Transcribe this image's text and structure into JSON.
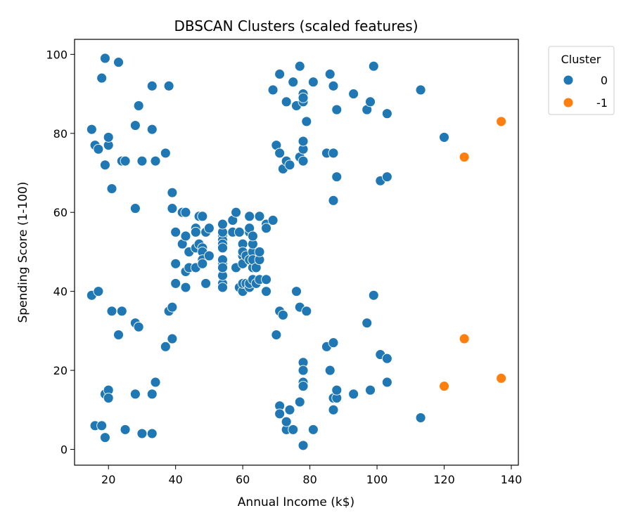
{
  "chart_data": {
    "type": "scatter",
    "title": "DBSCAN Clusters (scaled features)",
    "xlabel": "Annual Income (k$)",
    "ylabel": "Spending Score (1-100)",
    "xlim": [
      9.9,
      142.1
    ],
    "ylim": [
      -4,
      103.8
    ],
    "xticks": [
      20,
      40,
      60,
      80,
      100,
      120,
      140
    ],
    "yticks": [
      0,
      20,
      40,
      60,
      80,
      100
    ],
    "grid": false,
    "legend": {
      "title": "Cluster",
      "placement": "outside-top-right"
    },
    "series": [
      {
        "name": "0",
        "color": "#1f77b4",
        "points": [
          [
            15,
            39
          ],
          [
            15,
            81
          ],
          [
            16,
            6
          ],
          [
            16,
            77
          ],
          [
            17,
            40
          ],
          [
            17,
            76
          ],
          [
            18,
            6
          ],
          [
            18,
            94
          ],
          [
            19,
            3
          ],
          [
            19,
            72
          ],
          [
            19,
            14
          ],
          [
            19,
            99
          ],
          [
            20,
            15
          ],
          [
            20,
            77
          ],
          [
            20,
            13
          ],
          [
            20,
            79
          ],
          [
            21,
            35
          ],
          [
            21,
            66
          ],
          [
            23,
            29
          ],
          [
            23,
            98
          ],
          [
            24,
            35
          ],
          [
            24,
            73
          ],
          [
            25,
            5
          ],
          [
            25,
            73
          ],
          [
            28,
            14
          ],
          [
            28,
            82
          ],
          [
            28,
            32
          ],
          [
            28,
            61
          ],
          [
            29,
            31
          ],
          [
            29,
            87
          ],
          [
            30,
            4
          ],
          [
            30,
            73
          ],
          [
            33,
            4
          ],
          [
            33,
            92
          ],
          [
            33,
            14
          ],
          [
            33,
            81
          ],
          [
            34,
            17
          ],
          [
            34,
            73
          ],
          [
            37,
            26
          ],
          [
            37,
            75
          ],
          [
            38,
            35
          ],
          [
            38,
            92
          ],
          [
            39,
            36
          ],
          [
            39,
            61
          ],
          [
            39,
            28
          ],
          [
            39,
            65
          ],
          [
            40,
            55
          ],
          [
            40,
            47
          ],
          [
            40,
            42
          ],
          [
            40,
            42
          ],
          [
            42,
            52
          ],
          [
            42,
            60
          ],
          [
            43,
            54
          ],
          [
            43,
            60
          ],
          [
            43,
            45
          ],
          [
            43,
            41
          ],
          [
            44,
            50
          ],
          [
            44,
            46
          ],
          [
            46,
            51
          ],
          [
            46,
            46
          ],
          [
            46,
            56
          ],
          [
            46,
            55
          ],
          [
            47,
            52
          ],
          [
            47,
            59
          ],
          [
            48,
            51
          ],
          [
            48,
            59
          ],
          [
            48,
            50
          ],
          [
            48,
            48
          ],
          [
            48,
            59
          ],
          [
            48,
            47
          ],
          [
            49,
            55
          ],
          [
            49,
            42
          ],
          [
            50,
            49
          ],
          [
            50,
            56
          ],
          [
            54,
            47
          ],
          [
            54,
            54
          ],
          [
            54,
            53
          ],
          [
            54,
            48
          ],
          [
            54,
            52
          ],
          [
            54,
            42
          ],
          [
            54,
            51
          ],
          [
            54,
            55
          ],
          [
            54,
            41
          ],
          [
            54,
            44
          ],
          [
            54,
            57
          ],
          [
            54,
            46
          ],
          [
            57,
            58
          ],
          [
            57,
            55
          ],
          [
            58,
            60
          ],
          [
            58,
            46
          ],
          [
            59,
            55
          ],
          [
            59,
            41
          ],
          [
            60,
            49
          ],
          [
            60,
            40
          ],
          [
            60,
            42
          ],
          [
            60,
            52
          ],
          [
            60,
            47
          ],
          [
            60,
            50
          ],
          [
            61,
            42
          ],
          [
            61,
            49
          ],
          [
            62,
            41
          ],
          [
            62,
            48
          ],
          [
            62,
            59
          ],
          [
            62,
            55
          ],
          [
            62,
            56
          ],
          [
            62,
            42
          ],
          [
            63,
            50
          ],
          [
            63,
            46
          ],
          [
            63,
            43
          ],
          [
            63,
            48
          ],
          [
            63,
            52
          ],
          [
            63,
            54
          ],
          [
            64,
            42
          ],
          [
            64,
            46
          ],
          [
            65,
            48
          ],
          [
            65,
            50
          ],
          [
            65,
            43
          ],
          [
            65,
            59
          ],
          [
            67,
            43
          ],
          [
            67,
            57
          ],
          [
            67,
            56
          ],
          [
            67,
            40
          ],
          [
            69,
            58
          ],
          [
            69,
            91
          ],
          [
            70,
            29
          ],
          [
            70,
            77
          ],
          [
            71,
            35
          ],
          [
            71,
            95
          ],
          [
            71,
            11
          ],
          [
            71,
            75
          ],
          [
            71,
            9
          ],
          [
            71,
            75
          ],
          [
            72,
            34
          ],
          [
            72,
            71
          ],
          [
            73,
            5
          ],
          [
            73,
            88
          ],
          [
            73,
            7
          ],
          [
            73,
            73
          ],
          [
            74,
            10
          ],
          [
            74,
            72
          ],
          [
            75,
            5
          ],
          [
            75,
            93
          ],
          [
            76,
            40
          ],
          [
            76,
            87
          ],
          [
            77,
            12
          ],
          [
            77,
            97
          ],
          [
            77,
            36
          ],
          [
            77,
            74
          ],
          [
            78,
            22
          ],
          [
            78,
            90
          ],
          [
            78,
            17
          ],
          [
            78,
            88
          ],
          [
            78,
            20
          ],
          [
            78,
            76
          ],
          [
            78,
            16
          ],
          [
            78,
            89
          ],
          [
            78,
            1
          ],
          [
            78,
            78
          ],
          [
            78,
            1
          ],
          [
            78,
            73
          ],
          [
            79,
            35
          ],
          [
            79,
            83
          ],
          [
            81,
            5
          ],
          [
            81,
            93
          ],
          [
            85,
            26
          ],
          [
            85,
            75
          ],
          [
            86,
            20
          ],
          [
            86,
            95
          ],
          [
            87,
            27
          ],
          [
            87,
            63
          ],
          [
            87,
            13
          ],
          [
            87,
            75
          ],
          [
            87,
            10
          ],
          [
            87,
            92
          ],
          [
            88,
            13
          ],
          [
            88,
            86
          ],
          [
            88,
            15
          ],
          [
            88,
            69
          ],
          [
            93,
            14
          ],
          [
            93,
            90
          ],
          [
            97,
            32
          ],
          [
            97,
            86
          ],
          [
            98,
            15
          ],
          [
            98,
            88
          ],
          [
            99,
            39
          ],
          [
            99,
            97
          ],
          [
            101,
            24
          ],
          [
            101,
            68
          ],
          [
            103,
            17
          ],
          [
            103,
            85
          ],
          [
            103,
            23
          ],
          [
            103,
            69
          ],
          [
            113,
            8
          ],
          [
            113,
            91
          ],
          [
            120,
            79
          ]
        ]
      },
      {
        "name": "-1",
        "color": "#ff7f0e",
        "points": [
          [
            120,
            16
          ],
          [
            126,
            28
          ],
          [
            126,
            74
          ],
          [
            137,
            18
          ],
          [
            137,
            83
          ]
        ]
      }
    ]
  }
}
